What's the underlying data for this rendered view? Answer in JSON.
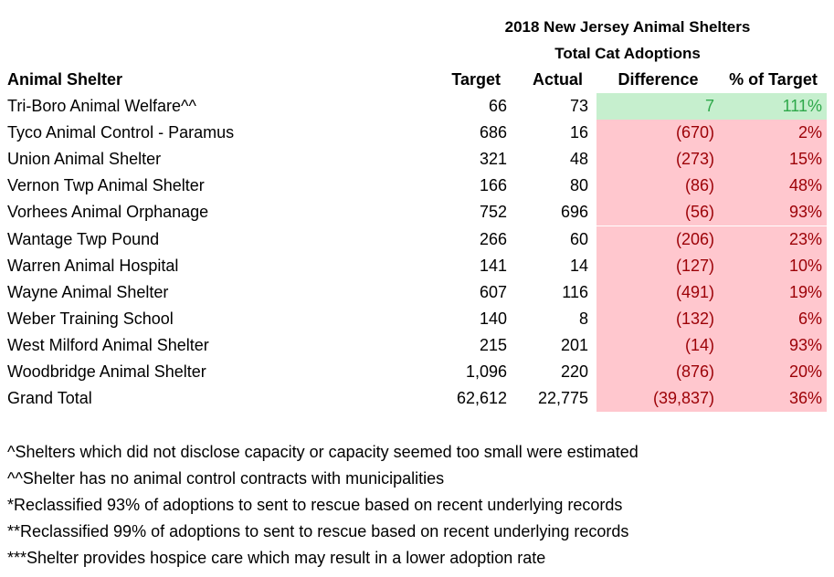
{
  "header": {
    "title_lines": [
      "2018 New Jersey Animal Shelters",
      "Total Cat Adoptions"
    ]
  },
  "table": {
    "columns": [
      "Animal Shelter",
      "Target",
      "Actual",
      "Difference",
      "% of Target"
    ],
    "rows": [
      {
        "cells": [
          "Tri-Boro Animal Welfare^^",
          "66",
          "73",
          "7",
          "111%"
        ],
        "fill": "#c6efce",
        "color": "#2ea84a"
      },
      {
        "cells": [
          "Tyco Animal Control - Paramus",
          "686",
          "16",
          "(670)",
          "2%"
        ],
        "fill": "#ffc7ce",
        "color": "#9c0006"
      },
      {
        "cells": [
          "Union Animal Shelter",
          "321",
          "48",
          "(273)",
          "15%"
        ],
        "fill": "#ffc7ce",
        "color": "#9c0006"
      },
      {
        "cells": [
          "Vernon Twp Animal Shelter",
          "166",
          "80",
          "(86)",
          "48%"
        ],
        "fill": "#ffc7ce",
        "color": "#9c0006"
      },
      {
        "cells": [
          "Vorhees Animal Orphanage",
          "752",
          "696",
          "(56)",
          "93%"
        ],
        "fill": "#ffc7ce",
        "color": "#9c0006"
      },
      {
        "cells": [
          "Wantage Twp Pound",
          "266",
          "60",
          "(206)",
          "23%"
        ],
        "fill": "#ffc7ce",
        "color": "#9c0006"
      },
      {
        "cells": [
          "Warren Animal Hospital",
          "141",
          "14",
          "(127)",
          "10%"
        ],
        "fill": "#ffc7ce",
        "color": "#9c0006"
      },
      {
        "cells": [
          "Wayne Animal Shelter",
          "607",
          "116",
          "(491)",
          "19%"
        ],
        "fill": "#ffc7ce",
        "color": "#9c0006"
      },
      {
        "cells": [
          "Weber Training School",
          "140",
          "8",
          "(132)",
          "6%"
        ],
        "fill": "#ffc7ce",
        "color": "#9c0006"
      },
      {
        "cells": [
          "West Milford Animal Shelter",
          "215",
          "201",
          "(14)",
          "93%"
        ],
        "fill": "#ffc7ce",
        "color": "#9c0006"
      },
      {
        "cells": [
          "Woodbridge Animal Shelter",
          "1,096",
          "220",
          "(876)",
          "20%"
        ],
        "fill": "#ffc7ce",
        "color": "#9c0006"
      },
      {
        "cells": [
          "Grand Total",
          "62,612",
          "22,775",
          "(39,837)",
          "36%"
        ],
        "fill": "#ffc7ce",
        "color": "#9c0006"
      }
    ]
  },
  "footnotes": [
    "^Shelters which did not disclose capacity or capacity seemed too small were estimated",
    "^^Shelter has no animal control contracts with municipalities",
    "*Reclassified 93% of adoptions to sent to rescue based on recent underlying records",
    "**Reclassified 99% of adoptions to sent to rescue based on recent underlying records",
    "***Shelter provides hospice care which may result in a lower adoption rate"
  ]
}
